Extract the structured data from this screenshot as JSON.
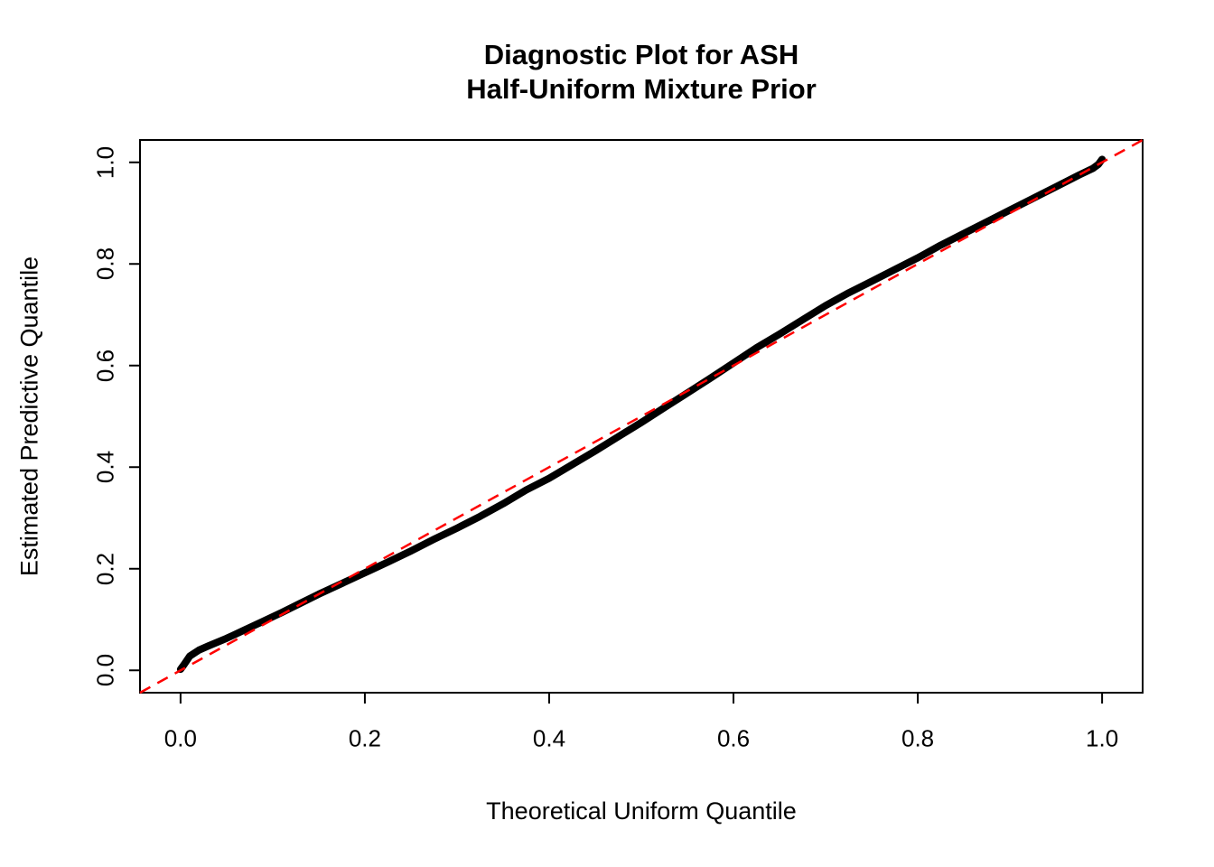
{
  "figure": {
    "title_line1": "Diagnostic Plot for ASH",
    "title_line2": "Half-Uniform Mixture Prior",
    "xlabel": "Theoretical Uniform Quantile",
    "ylabel": "Estimated Predictive Quantile"
  },
  "colors": {
    "background": "#FFFFFF",
    "axis": "#000000",
    "qq_curve": "#000000",
    "reference_line": "#FF0000"
  },
  "chart_data": {
    "type": "scatter",
    "title": "Diagnostic Plot for ASH\nHalf-Uniform Mixture Prior",
    "xlabel": "Theoretical Uniform Quantile",
    "ylabel": "Estimated Predictive Quantile",
    "xlim": [
      -0.044,
      1.044
    ],
    "ylim": [
      -0.044,
      1.044
    ],
    "x_ticks": [
      0.0,
      0.2,
      0.4,
      0.6,
      0.8,
      1.0
    ],
    "y_ticks": [
      0.0,
      0.2,
      0.4,
      0.6,
      0.8,
      1.0
    ],
    "x_tick_labels": [
      "0.0",
      "0.2",
      "0.4",
      "0.6",
      "0.8",
      "1.0"
    ],
    "y_tick_labels": [
      "0.0",
      "0.2",
      "0.4",
      "0.6",
      "0.8",
      "1.0"
    ],
    "grid": false,
    "legend": "none",
    "series": [
      {
        "name": "estimated-vs-theoretical-quantiles",
        "style": "dense-points",
        "color": "#000000",
        "points": [
          [
            0.0,
            0.002
          ],
          [
            0.004,
            0.012
          ],
          [
            0.01,
            0.028
          ],
          [
            0.02,
            0.04
          ],
          [
            0.03,
            0.048
          ],
          [
            0.05,
            0.063
          ],
          [
            0.07,
            0.08
          ],
          [
            0.09,
            0.097
          ],
          [
            0.11,
            0.114
          ],
          [
            0.13,
            0.132
          ],
          [
            0.15,
            0.15
          ],
          [
            0.175,
            0.171
          ],
          [
            0.2,
            0.192
          ],
          [
            0.225,
            0.213
          ],
          [
            0.25,
            0.235
          ],
          [
            0.275,
            0.258
          ],
          [
            0.3,
            0.28
          ],
          [
            0.325,
            0.303
          ],
          [
            0.35,
            0.328
          ],
          [
            0.375,
            0.355
          ],
          [
            0.4,
            0.378
          ],
          [
            0.425,
            0.405
          ],
          [
            0.45,
            0.432
          ],
          [
            0.475,
            0.46
          ],
          [
            0.5,
            0.488
          ],
          [
            0.525,
            0.517
          ],
          [
            0.55,
            0.546
          ],
          [
            0.575,
            0.575
          ],
          [
            0.6,
            0.605
          ],
          [
            0.625,
            0.635
          ],
          [
            0.65,
            0.662
          ],
          [
            0.675,
            0.69
          ],
          [
            0.7,
            0.718
          ],
          [
            0.725,
            0.743
          ],
          [
            0.75,
            0.766
          ],
          [
            0.775,
            0.789
          ],
          [
            0.8,
            0.812
          ],
          [
            0.825,
            0.837
          ],
          [
            0.85,
            0.86
          ],
          [
            0.875,
            0.883
          ],
          [
            0.9,
            0.906
          ],
          [
            0.925,
            0.929
          ],
          [
            0.95,
            0.952
          ],
          [
            0.975,
            0.975
          ],
          [
            0.99,
            0.988
          ],
          [
            0.996,
            0.996
          ],
          [
            1.0,
            1.006
          ]
        ]
      },
      {
        "name": "identity-reference-line",
        "style": "dashed",
        "color": "#FF0000",
        "points": [
          [
            -0.044,
            -0.044
          ],
          [
            1.044,
            1.044
          ]
        ]
      }
    ]
  }
}
